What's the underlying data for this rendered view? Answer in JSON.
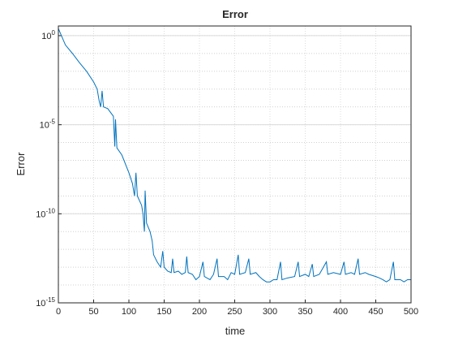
{
  "chart_data": {
    "type": "line",
    "title": "Error",
    "xlabel": "time",
    "ylabel": "Error",
    "log_y": true,
    "grid": true,
    "minor_grid": true,
    "xlim": [
      0,
      500
    ],
    "xticks": [
      0,
      50,
      100,
      150,
      200,
      250,
      300,
      350,
      400,
      450,
      500
    ],
    "ylim": [
      1e-15,
      3.5
    ],
    "yticks": [
      {
        "value": 1e-15,
        "label": "10^-15"
      },
      {
        "value": 1e-10,
        "label": "10^-10"
      },
      {
        "value": 1e-05,
        "label": "10^-5"
      },
      {
        "value": 1,
        "label": "10^0"
      }
    ],
    "series": [
      {
        "name": "Error",
        "color": "#0072bd",
        "x": [
          0,
          10,
          20,
          30,
          40,
          50,
          55,
          58,
          60,
          62,
          64,
          70,
          78,
          80,
          81,
          83,
          90,
          100,
          105,
          108,
          110,
          112,
          118,
          120,
          122,
          123,
          125,
          130,
          133,
          135,
          140,
          145,
          148,
          150,
          155,
          160,
          162,
          164,
          170,
          175,
          180,
          182,
          184,
          190,
          195,
          200,
          205,
          207,
          215,
          220,
          225,
          227,
          235,
          240,
          245,
          250,
          255,
          257,
          265,
          270,
          272,
          280,
          285,
          290,
          295,
          300,
          305,
          310,
          315,
          317,
          325,
          335,
          340,
          342,
          350,
          355,
          360,
          362,
          370,
          380,
          382,
          390,
          400,
          405,
          407,
          415,
          420,
          425,
          427,
          435,
          440,
          450,
          455,
          460,
          465,
          470,
          475,
          477,
          485,
          490,
          495,
          500
        ],
        "values": [
          2.5,
          0.3,
          0.1,
          0.03,
          0.01,
          0.0025,
          0.001,
          0.0002,
          0.0001,
          0.0008,
          0.0001,
          8e-05,
          3e-05,
          6e-07,
          2e-05,
          5e-07,
          2e-07,
          2e-08,
          5e-09,
          1e-09,
          2e-08,
          1e-09,
          3e-10,
          1e-10,
          1e-11,
          2e-09,
          3e-11,
          1e-11,
          3e-12,
          5e-13,
          2e-13,
          1e-13,
          8e-13,
          1e-13,
          6e-14,
          5e-14,
          3e-13,
          5e-14,
          6e-14,
          4e-14,
          5e-14,
          4e-13,
          5e-14,
          4e-14,
          2e-14,
          3e-14,
          2e-13,
          3e-14,
          2e-14,
          4e-14,
          3e-13,
          3e-14,
          3e-14,
          2e-14,
          5e-14,
          4e-14,
          5e-13,
          4e-14,
          5e-14,
          3e-13,
          4e-14,
          5e-14,
          3e-14,
          2e-14,
          1.5e-14,
          1.5e-14,
          2e-14,
          2e-14,
          2e-13,
          2e-14,
          2.5e-14,
          3e-14,
          2e-13,
          3e-14,
          4e-14,
          3e-14,
          1.5e-13,
          3e-14,
          4e-14,
          2e-13,
          4e-14,
          5e-14,
          4e-14,
          2e-13,
          4e-14,
          5e-14,
          4e-14,
          3e-13,
          4e-14,
          5e-14,
          4e-14,
          3e-14,
          2.5e-14,
          2e-14,
          1.5e-14,
          2e-14,
          2e-13,
          2e-14,
          2e-14,
          1.5e-14,
          2e-14,
          2e-14
        ]
      }
    ]
  }
}
